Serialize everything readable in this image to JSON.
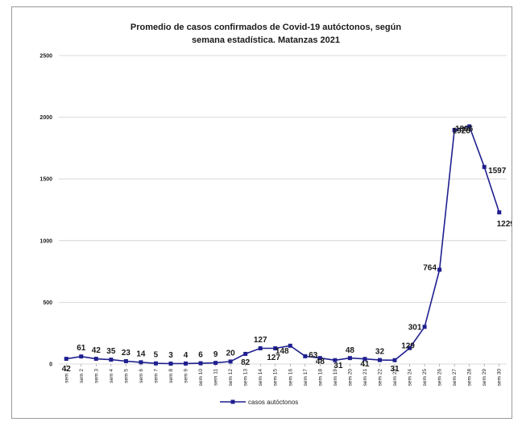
{
  "chart_data": {
    "type": "line",
    "title_line1": "Promedio de casos confirmados de Covid-19 autóctonos,  según",
    "title_line2": "semana estadística. Matanzas 2021",
    "xlabel": "",
    "ylabel": "",
    "ylim": [
      0,
      2500
    ],
    "yticks": [
      0,
      500,
      1000,
      1500,
      2000,
      2500
    ],
    "grid": true,
    "legend_position": "bottom",
    "categories": [
      "sem 1",
      "sem 2",
      "sem 3",
      "sem 4",
      "sem 5",
      "sem 6",
      "sem 7",
      "sem 8",
      "sem 9",
      "sem 10",
      "sem 11",
      "sem 12",
      "sem 13",
      "sem 14",
      "sem 15",
      "sem 16",
      "sem 17",
      "sem 18",
      "sem 19",
      "sem 20",
      "sem 21",
      "sem 22",
      "sem 23",
      "sem 24",
      "sem 25",
      "sem 26",
      "sem 27",
      "sem 28",
      "sem 29",
      "sem 30"
    ],
    "series": [
      {
        "name": "casos autóctonos",
        "color": "#1f1f8f",
        "values": [
          42,
          61,
          42,
          35,
          23,
          14,
          5,
          3,
          4,
          6,
          9,
          20,
          82,
          127,
          127,
          148,
          63,
          48,
          31,
          48,
          41,
          32,
          31,
          129,
          301,
          764,
          1896,
          1926,
          1597,
          1229
        ],
        "labels": [
          "42",
          "61",
          "42",
          "35",
          "23",
          "14",
          "5",
          "3",
          "4",
          "6",
          "9",
          "20",
          "82",
          "127",
          "127",
          "148",
          "63",
          "48",
          "31",
          "48",
          "41",
          "32",
          "31",
          "129",
          "301",
          "764",
          "1896",
          "1926",
          "1597",
          "1229"
        ]
      }
    ]
  }
}
